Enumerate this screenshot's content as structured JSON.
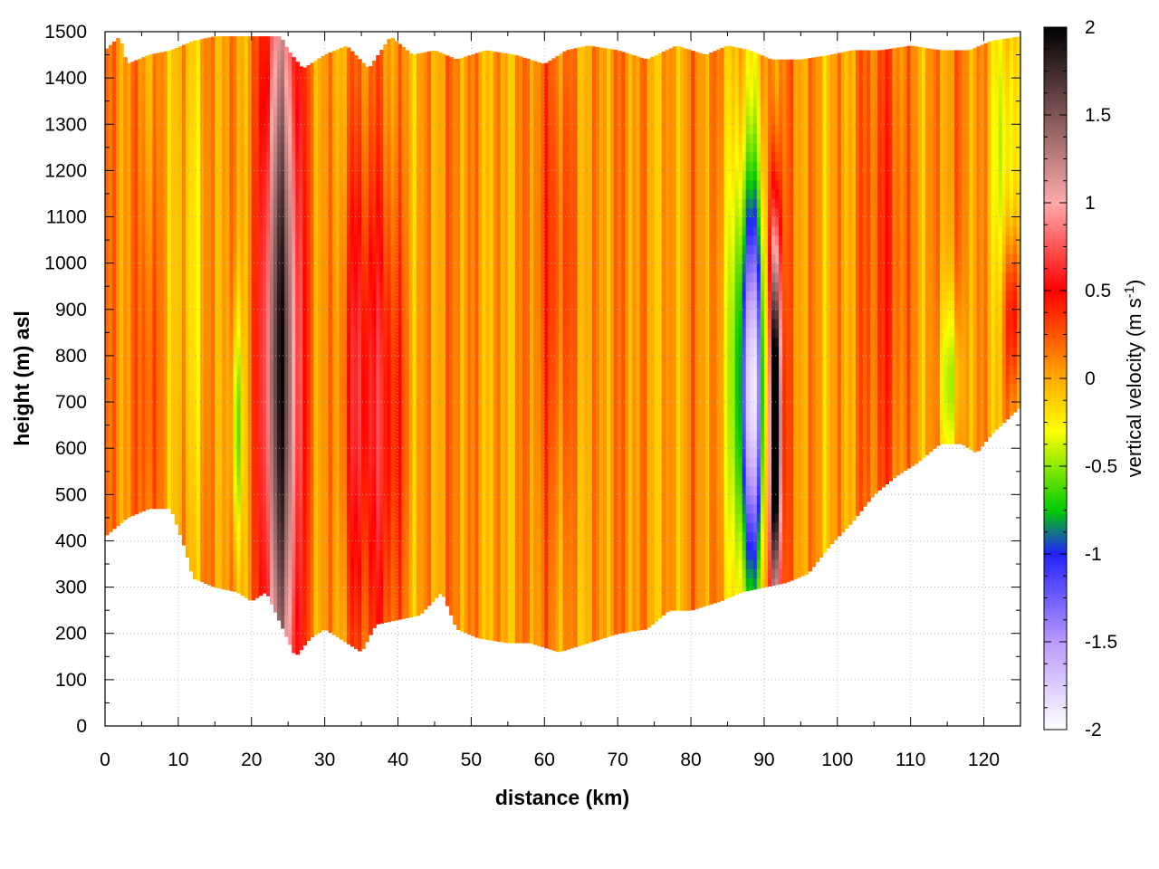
{
  "chart_data": {
    "type": "heatmap",
    "title": "",
    "xlabel": "distance (km)",
    "ylabel": "height (m) asl",
    "xlim": [
      0,
      125
    ],
    "ylim": [
      0,
      1500
    ],
    "x_ticks": [
      "0",
      "10",
      "20",
      "30",
      "40",
      "50",
      "60",
      "70",
      "80",
      "90",
      "100",
      "110",
      "120"
    ],
    "y_ticks": [
      "0",
      "100",
      "200",
      "300",
      "400",
      "500",
      "600",
      "700",
      "800",
      "900",
      "1000",
      "1100",
      "1200",
      "1300",
      "1400",
      "1500"
    ],
    "grid": true,
    "colorbar": {
      "label_prefix": "vertical velocity (m s",
      "label_exponent": "-1",
      "label_suffix": ")",
      "range": [
        -2,
        2
      ],
      "ticks": [
        "2",
        "1.5",
        "1",
        "0.5",
        "0",
        "-0.5",
        "-1",
        "-1.5",
        "-2"
      ],
      "colors": [
        "#ffffff",
        "#bb99ff",
        "#2222ff",
        "#00cc00",
        "#ffff00",
        "#ffaa00",
        "#ff0000",
        "#ffaaaa",
        "#000000"
      ],
      "stops": [
        -2,
        -1.5,
        -1,
        -0.75,
        -0.3,
        0,
        0.5,
        1,
        2
      ]
    },
    "background_value": 0.05,
    "terrain_bottom": [
      [
        0,
        410
      ],
      [
        3,
        450
      ],
      [
        6,
        470
      ],
      [
        9,
        470
      ],
      [
        11,
        380
      ],
      [
        12,
        320
      ],
      [
        15,
        300
      ],
      [
        18,
        290
      ],
      [
        20,
        270
      ],
      [
        22,
        290
      ],
      [
        24,
        220
      ],
      [
        26,
        150
      ],
      [
        28,
        190
      ],
      [
        30,
        210
      ],
      [
        32,
        190
      ],
      [
        35,
        160
      ],
      [
        37,
        220
      ],
      [
        40,
        230
      ],
      [
        43,
        240
      ],
      [
        46,
        290
      ],
      [
        48,
        210
      ],
      [
        51,
        190
      ],
      [
        55,
        180
      ],
      [
        58,
        180
      ],
      [
        62,
        160
      ],
      [
        66,
        180
      ],
      [
        70,
        200
      ],
      [
        74,
        210
      ],
      [
        77,
        250
      ],
      [
        80,
        250
      ],
      [
        84,
        270
      ],
      [
        87,
        290
      ],
      [
        90,
        300
      ],
      [
        93,
        310
      ],
      [
        96,
        330
      ],
      [
        99,
        390
      ],
      [
        102,
        440
      ],
      [
        105,
        500
      ],
      [
        108,
        540
      ],
      [
        111,
        570
      ],
      [
        114,
        610
      ],
      [
        117,
        610
      ],
      [
        119,
        590
      ],
      [
        121,
        630
      ],
      [
        125,
        690
      ]
    ],
    "top_boundary": [
      [
        0,
        1460
      ],
      [
        2,
        1490
      ],
      [
        3,
        1430
      ],
      [
        6,
        1450
      ],
      [
        9,
        1460
      ],
      [
        12,
        1480
      ],
      [
        15,
        1490
      ],
      [
        18,
        1490
      ],
      [
        22,
        1490
      ],
      [
        24,
        1490
      ],
      [
        25,
        1460
      ],
      [
        27,
        1420
      ],
      [
        30,
        1450
      ],
      [
        33,
        1470
      ],
      [
        36,
        1420
      ],
      [
        39,
        1490
      ],
      [
        42,
        1450
      ],
      [
        45,
        1460
      ],
      [
        48,
        1440
      ],
      [
        52,
        1460
      ],
      [
        56,
        1450
      ],
      [
        60,
        1430
      ],
      [
        63,
        1460
      ],
      [
        66,
        1470
      ],
      [
        70,
        1460
      ],
      [
        74,
        1440
      ],
      [
        78,
        1470
      ],
      [
        82,
        1450
      ],
      [
        85,
        1470
      ],
      [
        88,
        1460
      ],
      [
        91,
        1440
      ],
      [
        95,
        1440
      ],
      [
        99,
        1450
      ],
      [
        102,
        1460
      ],
      [
        106,
        1460
      ],
      [
        110,
        1470
      ],
      [
        114,
        1460
      ],
      [
        118,
        1460
      ],
      [
        121,
        1480
      ],
      [
        125,
        1490
      ]
    ],
    "features": [
      {
        "x": 24,
        "y": 760,
        "sx": 1.5,
        "sy": 620,
        "v": 1.2
      },
      {
        "x": 24,
        "y": 800,
        "sx": 2.6,
        "sy": 720,
        "v": 0.5
      },
      {
        "x": 34.5,
        "y": 720,
        "sx": 1.6,
        "sy": 380,
        "v": 0.5
      },
      {
        "x": 38.5,
        "y": 650,
        "sx": 1.8,
        "sy": 380,
        "v": 0.45
      },
      {
        "x": 18,
        "y": 640,
        "sx": 0.5,
        "sy": 180,
        "v": -0.6
      },
      {
        "x": 88.5,
        "y": 720,
        "sx": 1.1,
        "sy": 280,
        "v": -1.2
      },
      {
        "x": 87.5,
        "y": 760,
        "sx": 1.9,
        "sy": 380,
        "v": -0.7
      },
      {
        "x": 91.5,
        "y": 650,
        "sx": 0.5,
        "sy": 300,
        "v": 2.2
      },
      {
        "x": 91.5,
        "y": 640,
        "sx": 0.85,
        "sy": 320,
        "v": 0.6
      },
      {
        "x": 115.5,
        "y": 740,
        "sx": 1.0,
        "sy": 140,
        "v": -0.5
      },
      {
        "x": 124,
        "y": 900,
        "sx": 0.8,
        "sy": 120,
        "v": 0.5
      },
      {
        "x": 123,
        "y": 1250,
        "sx": 1.2,
        "sy": 220,
        "v": -0.4
      },
      {
        "x": 107,
        "y": 1000,
        "sx": 2.5,
        "sy": 500,
        "v": 0.25
      },
      {
        "x": 62,
        "y": 1000,
        "sx": 2.0,
        "sy": 400,
        "v": 0.25
      },
      {
        "x": 6,
        "y": 700,
        "sx": 1.0,
        "sy": 400,
        "v": 0.3
      },
      {
        "x": 12,
        "y": 1000,
        "sx": 1.5,
        "sy": 500,
        "v": -0.25
      }
    ]
  }
}
